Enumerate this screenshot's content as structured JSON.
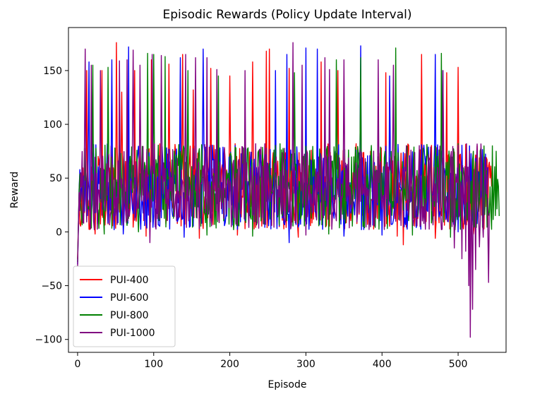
{
  "chart_data": {
    "type": "line",
    "title": "Episodic Rewards (Policy Update Interval)",
    "xlabel": "Episode",
    "ylabel": "Reward",
    "xlim": [
      -12,
      563
    ],
    "ylim": [
      -112,
      190
    ],
    "x_ticks": [
      0,
      100,
      200,
      300,
      400,
      500
    ],
    "y_ticks": [
      -100,
      -50,
      0,
      50,
      100,
      150
    ],
    "legend_position": "lower-left",
    "grid": false,
    "series": [
      {
        "name": "PUI-400",
        "color": "#ff0000",
        "n_episodes": 545,
        "start_value": -25,
        "peaks": [
          [
            12,
            150
          ],
          [
            32,
            150
          ],
          [
            51,
            176
          ],
          [
            58,
            130
          ],
          [
            75,
            150
          ],
          [
            97,
            160
          ],
          [
            120,
            156
          ],
          [
            138,
            165
          ],
          [
            152,
            132
          ],
          [
            175,
            152
          ],
          [
            200,
            145
          ],
          [
            230,
            158
          ],
          [
            248,
            168
          ],
          [
            252,
            170
          ],
          [
            278,
            152
          ],
          [
            320,
            158
          ],
          [
            342,
            150
          ],
          [
            405,
            148
          ],
          [
            452,
            165
          ],
          [
            485,
            148
          ],
          [
            500,
            153
          ],
          [
            525,
            80
          ]
        ],
        "dips": [
          [
            23,
            -2
          ],
          [
            90,
            -4
          ],
          [
            160,
            -6
          ],
          [
            210,
            -3
          ],
          [
            290,
            -5
          ],
          [
            420,
            -4
          ],
          [
            428,
            -12
          ],
          [
            470,
            -6
          ],
          [
            520,
            -2
          ]
        ]
      },
      {
        "name": "PUI-600",
        "color": "#0000ff",
        "n_episodes": 540,
        "start_value": -30,
        "peaks": [
          [
            15,
            158
          ],
          [
            45,
            160
          ],
          [
            67,
            172
          ],
          [
            135,
            162
          ],
          [
            165,
            170
          ],
          [
            260,
            150
          ],
          [
            275,
            165
          ],
          [
            300,
            171
          ],
          [
            315,
            170
          ],
          [
            372,
            173
          ],
          [
            410,
            145
          ],
          [
            470,
            165
          ],
          [
            480,
            150
          ],
          [
            515,
            80
          ]
        ],
        "dips": [
          [
            60,
            -2
          ],
          [
            140,
            -5
          ],
          [
            278,
            -10
          ],
          [
            350,
            -4
          ],
          [
            400,
            -3
          ],
          [
            500,
            0
          ]
        ]
      },
      {
        "name": "PUI-800",
        "color": "#008000",
        "n_episodes": 555,
        "start_value": -28,
        "peaks": [
          [
            20,
            155
          ],
          [
            40,
            153
          ],
          [
            92,
            166
          ],
          [
            100,
            165
          ],
          [
            115,
            163
          ],
          [
            145,
            150
          ],
          [
            185,
            145
          ],
          [
            285,
            148
          ],
          [
            340,
            160
          ],
          [
            372,
            162
          ],
          [
            418,
            171
          ],
          [
            440,
            151
          ],
          [
            478,
            166
          ],
          [
            500,
            82
          ],
          [
            530,
            78
          ],
          [
            545,
            80
          ]
        ],
        "dips": [
          [
            35,
            -2
          ],
          [
            80,
            0
          ],
          [
            170,
            -3
          ],
          [
            230,
            -4
          ],
          [
            330,
            -2
          ],
          [
            440,
            -3
          ],
          [
            490,
            -5
          ]
        ]
      },
      {
        "name": "PUI-1000",
        "color": "#800080",
        "n_episodes": 542,
        "start_value": -32,
        "peaks": [
          [
            10,
            170
          ],
          [
            18,
            155
          ],
          [
            30,
            150
          ],
          [
            55,
            159
          ],
          [
            65,
            160
          ],
          [
            73,
            169
          ],
          [
            82,
            155
          ],
          [
            98,
            165
          ],
          [
            110,
            164
          ],
          [
            142,
            165
          ],
          [
            155,
            162
          ],
          [
            170,
            162
          ],
          [
            183,
            151
          ],
          [
            220,
            150
          ],
          [
            283,
            176
          ],
          [
            295,
            155
          ],
          [
            325,
            162
          ],
          [
            331,
            151
          ],
          [
            350,
            160
          ],
          [
            395,
            160
          ],
          [
            415,
            155
          ],
          [
            480,
            150
          ]
        ],
        "dips": [
          [
            95,
            -10
          ],
          [
            300,
            -3
          ],
          [
            495,
            -15
          ],
          [
            505,
            -25
          ],
          [
            510,
            -18
          ],
          [
            514,
            -50
          ],
          [
            516,
            -98
          ],
          [
            519,
            -72
          ],
          [
            523,
            -35
          ],
          [
            528,
            -14
          ],
          [
            533,
            -5
          ],
          [
            540,
            -47
          ]
        ]
      }
    ]
  }
}
